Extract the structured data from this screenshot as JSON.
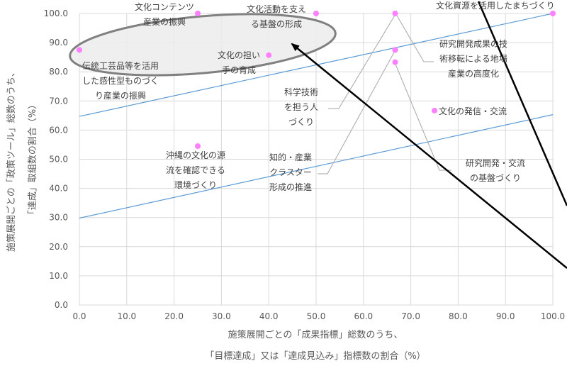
{
  "chart_data": {
    "type": "scatter",
    "xlabel": [
      "施策展開ごとの「成果指標」総数のうち、",
      "「目標達成」又は「達成見込み」指標数の割合（%）"
    ],
    "ylabel": [
      "施策展開ごとの「政策ツール」総数のうち、",
      "「達成」取組数の割合（%）"
    ],
    "xlim": [
      0,
      100
    ],
    "ylim": [
      0,
      100
    ],
    "xticks": [
      "0.0",
      "10.0",
      "20.0",
      "30.0",
      "40.0",
      "50.0",
      "60.0",
      "70.0",
      "80.0",
      "90.0",
      "100.0"
    ],
    "yticks": [
      "0.0",
      "10.0",
      "20.0",
      "30.0",
      "40.0",
      "50.0",
      "60.0",
      "70.0",
      "80.0",
      "90.0",
      "100.0"
    ],
    "grid": true,
    "point_color": "#ff80ff",
    "line_color": "#5b9bd5",
    "ellipse_color": "#808080",
    "ellipse_fill": "#ececec",
    "points": [
      {
        "x": 0.0,
        "y": 87.5,
        "label": [
          "伝統工芸品等を活用",
          "した感性型ものづく",
          "り産業の振興"
        ]
      },
      {
        "x": 25.0,
        "y": 100.0,
        "label": [
          "文化コンテンツ",
          "産業の振興"
        ]
      },
      {
        "x": 25.0,
        "y": 54.5,
        "label": [
          "沖縄の文化の源",
          "流を確認できる",
          "環境づくり"
        ]
      },
      {
        "x": 40.0,
        "y": 85.7,
        "label": [
          "文化の担い",
          "手の育成"
        ]
      },
      {
        "x": 50.0,
        "y": 100.0,
        "label": [
          "文化活動を支え",
          "る基盤の形成"
        ]
      },
      {
        "x": 66.7,
        "y": 100.0,
        "label": [
          "科学技術",
          "を担う人",
          "づくり"
        ]
      },
      {
        "x": 66.7,
        "y": 87.5,
        "label": [
          "知的・産業",
          "クラスター",
          "形成の推進"
        ]
      },
      {
        "x": 66.7,
        "y": 83.3,
        "label": [
          "研究開発・交流",
          "の基盤づくり"
        ]
      },
      {
        "x": 75.0,
        "y": 66.7,
        "label": [
          "文化の発信・交流"
        ]
      },
      {
        "x": 100.0,
        "y": 100.0,
        "label": [
          "文化資源を活用したまちづくり"
        ]
      },
      {
        "x": 66.7,
        "y": 87.5,
        "label": [
          "研究開発成果の技",
          "術移転による地場",
          "産業の高度化"
        ]
      }
    ],
    "trend_lines": [
      {
        "x": [
          0,
          100
        ],
        "y": [
          64.7,
          100.0
        ]
      },
      {
        "x": [
          0,
          100
        ],
        "y": [
          29.8,
          65.3
        ]
      }
    ]
  }
}
